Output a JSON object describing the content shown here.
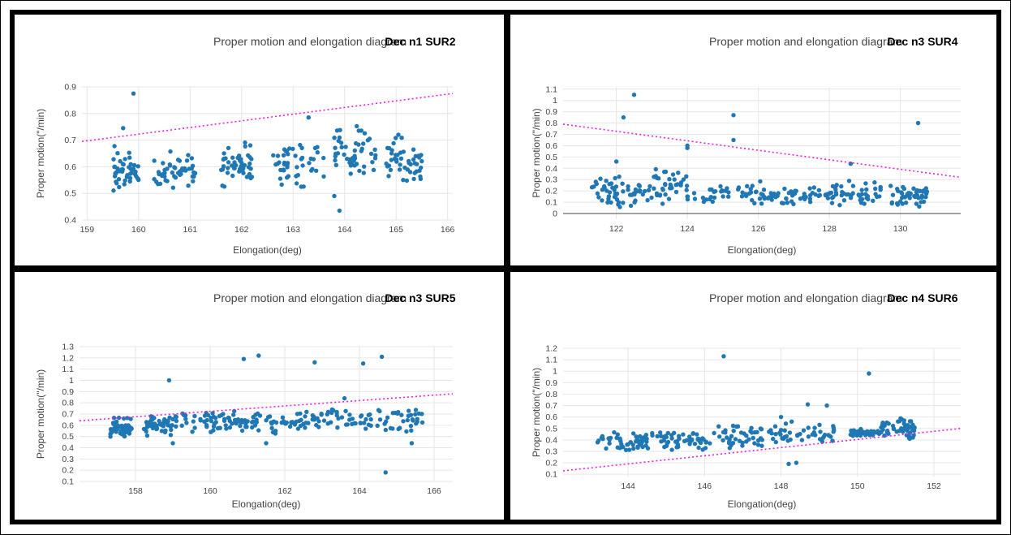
{
  "colors": {
    "point": "#1f77b4",
    "trend": "#ee1ee8",
    "grid": "#e6e6e6",
    "text": "#444444"
  },
  "chart_data": [
    {
      "type": "scatter",
      "title": "Proper motion and elongation diagram",
      "tag": "Dec n1 SUR2",
      "xlabel": "Elongation(deg)",
      "ylabel": "Proper motion(\"/min)",
      "xlim": [
        158.9,
        166.1
      ],
      "ylim": [
        0.4,
        0.9
      ],
      "xticks": [
        159,
        160,
        161,
        162,
        163,
        164,
        165,
        166
      ],
      "yticks": [
        0.4,
        0.5,
        0.6,
        0.7,
        0.8,
        0.9
      ],
      "zero_line": false,
      "trend_line": {
        "x": [
          158.9,
          166.1
        ],
        "y": [
          0.695,
          0.875
        ]
      },
      "clusters": [
        {
          "x": [
            159.5,
            160.0
          ],
          "y": [
            0.48,
            0.68
          ]
        },
        {
          "x": [
            160.3,
            161.1
          ],
          "y": [
            0.5,
            0.66
          ]
        },
        {
          "x": [
            161.6,
            162.2
          ],
          "y": [
            0.52,
            0.7
          ]
        },
        {
          "x": [
            162.6,
            163.6
          ],
          "y": [
            0.5,
            0.71
          ]
        },
        {
          "x": [
            163.8,
            164.6
          ],
          "y": [
            0.53,
            0.77
          ]
        },
        {
          "x": [
            164.8,
            165.5
          ],
          "y": [
            0.52,
            0.73
          ]
        }
      ],
      "outliers": [
        {
          "x": 159.9,
          "y": 0.875
        },
        {
          "x": 159.7,
          "y": 0.745
        },
        {
          "x": 163.3,
          "y": 0.785
        },
        {
          "x": 163.9,
          "y": 0.435
        },
        {
          "x": 163.8,
          "y": 0.49
        }
      ]
    },
    {
      "type": "scatter",
      "title": "Proper motion and elongation diagram",
      "tag": "Dec n3 SUR4",
      "xlabel": "Elongation(deg)",
      "ylabel": "Proper motion(\"/min)",
      "xlim": [
        120.5,
        131.7
      ],
      "ylim": [
        -0.05,
        1.12
      ],
      "xticks": [
        122,
        124,
        126,
        128,
        130
      ],
      "yticks": [
        0,
        0.1,
        0.2,
        0.3,
        0.4,
        0.5,
        0.6,
        0.7,
        0.8,
        0.9,
        1,
        1.1
      ],
      "zero_line": true,
      "trend_line": {
        "x": [
          120.5,
          131.7
        ],
        "y": [
          0.79,
          0.32
        ]
      },
      "clusters": [
        {
          "x": [
            121.3,
            122.6
          ],
          "y": [
            0.05,
            0.35
          ]
        },
        {
          "x": [
            122.6,
            124.0
          ],
          "y": [
            0.05,
            0.4
          ]
        },
        {
          "x": [
            124.0,
            126.2
          ],
          "y": [
            0.05,
            0.3
          ]
        },
        {
          "x": [
            126.2,
            128.0
          ],
          "y": [
            0.05,
            0.25
          ]
        },
        {
          "x": [
            128.0,
            129.5
          ],
          "y": [
            0.05,
            0.3
          ]
        },
        {
          "x": [
            129.7,
            130.8
          ],
          "y": [
            0.05,
            0.27
          ]
        }
      ],
      "outliers": [
        {
          "x": 122.5,
          "y": 1.05
        },
        {
          "x": 122.2,
          "y": 0.85
        },
        {
          "x": 125.3,
          "y": 0.87
        },
        {
          "x": 125.3,
          "y": 0.65
        },
        {
          "x": 124.0,
          "y": 0.6
        },
        {
          "x": 124.0,
          "y": 0.58
        },
        {
          "x": 130.5,
          "y": 0.8
        },
        {
          "x": 128.6,
          "y": 0.44
        },
        {
          "x": 122.0,
          "y": 0.46
        }
      ]
    },
    {
      "type": "scatter",
      "title": "Proper motion and elongation diagram",
      "tag": "Dec n3 SUR5",
      "xlabel": "Elongation(deg)",
      "ylabel": "Proper motion(\"/min)",
      "xlim": [
        156.5,
        166.5
      ],
      "ylim": [
        0.1,
        1.3
      ],
      "xticks": [
        158,
        160,
        162,
        164,
        166
      ],
      "yticks": [
        0.1,
        0.2,
        0.3,
        0.4,
        0.5,
        0.6,
        0.7,
        0.8,
        0.9,
        1,
        1.1,
        1.2,
        1.3
      ],
      "zero_line": false,
      "trend_line": {
        "x": [
          156.5,
          166.5
        ],
        "y": [
          0.64,
          0.88
        ]
      },
      "clusters": [
        {
          "x": [
            157.3,
            157.9
          ],
          "y": [
            0.45,
            0.7
          ]
        },
        {
          "x": [
            158.2,
            159.0
          ],
          "y": [
            0.5,
            0.72
          ]
        },
        {
          "x": [
            159.0,
            160.6
          ],
          "y": [
            0.52,
            0.72
          ]
        },
        {
          "x": [
            160.6,
            162.2
          ],
          "y": [
            0.52,
            0.74
          ]
        },
        {
          "x": [
            162.2,
            163.9
          ],
          "y": [
            0.55,
            0.76
          ]
        },
        {
          "x": [
            163.9,
            165.7
          ],
          "y": [
            0.52,
            0.77
          ]
        }
      ],
      "outliers": [
        {
          "x": 158.9,
          "y": 1.0
        },
        {
          "x": 160.9,
          "y": 1.19
        },
        {
          "x": 161.3,
          "y": 1.22
        },
        {
          "x": 162.8,
          "y": 1.16
        },
        {
          "x": 164.1,
          "y": 1.15
        },
        {
          "x": 164.6,
          "y": 1.21
        },
        {
          "x": 164.7,
          "y": 0.18
        },
        {
          "x": 163.6,
          "y": 0.84
        },
        {
          "x": 165.4,
          "y": 0.44
        },
        {
          "x": 161.5,
          "y": 0.44
        },
        {
          "x": 159.0,
          "y": 0.44
        }
      ]
    },
    {
      "type": "scatter",
      "title": "Proper motion and elongation diagram",
      "tag": "Dec n4 SUR6",
      "xlabel": "Elongation(deg)",
      "ylabel": "Proper motion(\"/min)",
      "xlim": [
        142.3,
        152.7
      ],
      "ylim": [
        0.08,
        1.2
      ],
      "xticks": [
        144,
        146,
        148,
        150,
        152
      ],
      "yticks": [
        0.1,
        0.2,
        0.3,
        0.4,
        0.5,
        0.6,
        0.7,
        0.8,
        0.9,
        1,
        1.1,
        1.2
      ],
      "zero_line": false,
      "trend_line": {
        "x": [
          142.3,
          152.7
        ],
        "y": [
          0.13,
          0.5
        ]
      },
      "clusters": [
        {
          "x": [
            143.2,
            144.5
          ],
          "y": [
            0.3,
            0.47
          ]
        },
        {
          "x": [
            144.5,
            146.0
          ],
          "y": [
            0.3,
            0.5
          ]
        },
        {
          "x": [
            146.0,
            147.6
          ],
          "y": [
            0.3,
            0.55
          ]
        },
        {
          "x": [
            147.6,
            149.4
          ],
          "y": [
            0.33,
            0.58
          ]
        },
        {
          "x": [
            149.8,
            150.6
          ],
          "y": [
            0.43,
            0.5
          ]
        },
        {
          "x": [
            150.6,
            151.5
          ],
          "y": [
            0.4,
            0.6
          ]
        }
      ],
      "outliers": [
        {
          "x": 146.5,
          "y": 1.13
        },
        {
          "x": 150.3,
          "y": 0.98
        },
        {
          "x": 148.7,
          "y": 0.71
        },
        {
          "x": 149.2,
          "y": 0.7
        },
        {
          "x": 148.2,
          "y": 0.19
        },
        {
          "x": 148.4,
          "y": 0.2
        },
        {
          "x": 148.0,
          "y": 0.6
        }
      ]
    }
  ]
}
